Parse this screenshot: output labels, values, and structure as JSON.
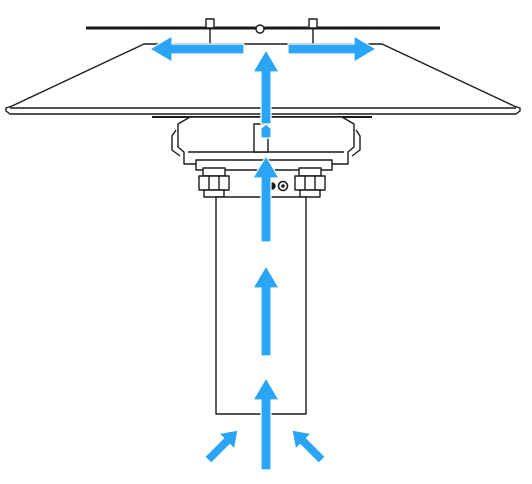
{
  "diagram": {
    "subject": "lamp-airflow",
    "line_color": "#1a1a1a",
    "fill_color": "#ffffff",
    "arrow_color": "#2aa4f4",
    "arrow_edge_color": "#ffffff",
    "arrows": [
      {
        "name": "flow-arrow-bottom-left",
        "direction": "up-right"
      },
      {
        "name": "flow-arrow-bottom-center",
        "direction": "up"
      },
      {
        "name": "flow-arrow-bottom-right",
        "direction": "up-left"
      },
      {
        "name": "flow-arrow-lower-column",
        "direction": "up"
      },
      {
        "name": "flow-arrow-middle-column",
        "direction": "up"
      },
      {
        "name": "flow-arrow-upper-column",
        "direction": "up"
      },
      {
        "name": "flow-arrow-top-rising",
        "direction": "up"
      },
      {
        "name": "flow-arrow-top-left",
        "direction": "left"
      },
      {
        "name": "flow-arrow-top-right",
        "direction": "right"
      }
    ]
  }
}
